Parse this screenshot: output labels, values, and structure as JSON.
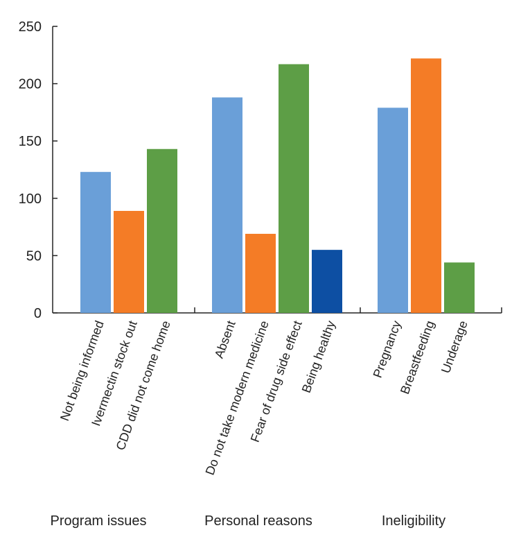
{
  "chart_data": {
    "type": "bar",
    "title": "",
    "xlabel": "",
    "ylabel": "",
    "ylim": [
      0,
      250
    ],
    "yticks": [
      0,
      50,
      100,
      150,
      200,
      250
    ],
    "grid": false,
    "groups": [
      {
        "label": "Program issues",
        "bars": [
          {
            "label": "Not being informed",
            "value": 123,
            "color": "#6a9fd8"
          },
          {
            "label": "Ivermectin stock out",
            "value": 89,
            "color": "#f47c26"
          },
          {
            "label": "CDD did not come home",
            "value": 143,
            "color": "#5d9e46"
          }
        ]
      },
      {
        "label": "Personal reasons",
        "bars": [
          {
            "label": "Absent",
            "value": 188,
            "color": "#6a9fd8"
          },
          {
            "label": "Do not take modern medicine",
            "value": 69,
            "color": "#f47c26"
          },
          {
            "label": "Fear of drug side effect",
            "value": 217,
            "color": "#5d9e46"
          },
          {
            "label": "Being healthy",
            "value": 55,
            "color": "#0d4fa3"
          }
        ]
      },
      {
        "label": "Ineligibility",
        "bars": [
          {
            "label": "Pregnancy",
            "value": 179,
            "color": "#6a9fd8"
          },
          {
            "label": "Breastfeeding",
            "value": 222,
            "color": "#f47c26"
          },
          {
            "label": "Underage",
            "value": 44,
            "color": "#5d9e46"
          }
        ]
      }
    ]
  }
}
